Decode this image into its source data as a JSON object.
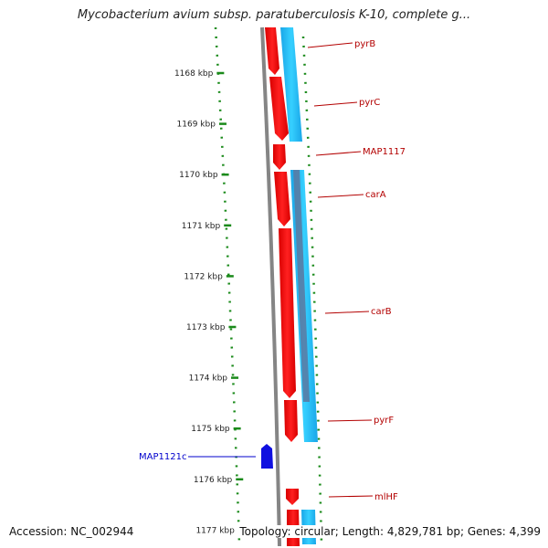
{
  "title": "Mycobacterium avium subsp. paratuberculosis K-10, complete g...",
  "footer": {
    "accession": "Accession: NC_002944",
    "summary": "Topology: circular; Length: 4,829,781 bp; Genes: 4,399"
  },
  "ruler": {
    "ticks": [
      "1168 kbp",
      "1169 kbp",
      "1170 kbp",
      "1171 kbp",
      "1172 kbp",
      "1173 kbp",
      "1174 kbp",
      "1175 kbp",
      "1176 kbp",
      "1177 kbp"
    ]
  },
  "genes": [
    {
      "name": "pyrB",
      "strand": "forward",
      "color": "#b30000"
    },
    {
      "name": "pyrC",
      "strand": "forward",
      "color": "#b30000"
    },
    {
      "name": "MAP1117",
      "strand": "forward",
      "color": "#b30000"
    },
    {
      "name": "carA",
      "strand": "forward",
      "color": "#b30000"
    },
    {
      "name": "carB",
      "strand": "forward",
      "color": "#b30000"
    },
    {
      "name": "pyrF",
      "strand": "forward",
      "color": "#b30000"
    },
    {
      "name": "MAP1121c",
      "strand": "reverse",
      "color": "#0000cc"
    },
    {
      "name": "mlHF",
      "strand": "forward",
      "color": "#b30000"
    }
  ],
  "colors": {
    "forward_cds": "#ff0000",
    "reverse_cds": "#0000ff",
    "orf_track": "#00b4ff",
    "dotted_track": "#1a8a1a",
    "backbone": "#808080"
  }
}
